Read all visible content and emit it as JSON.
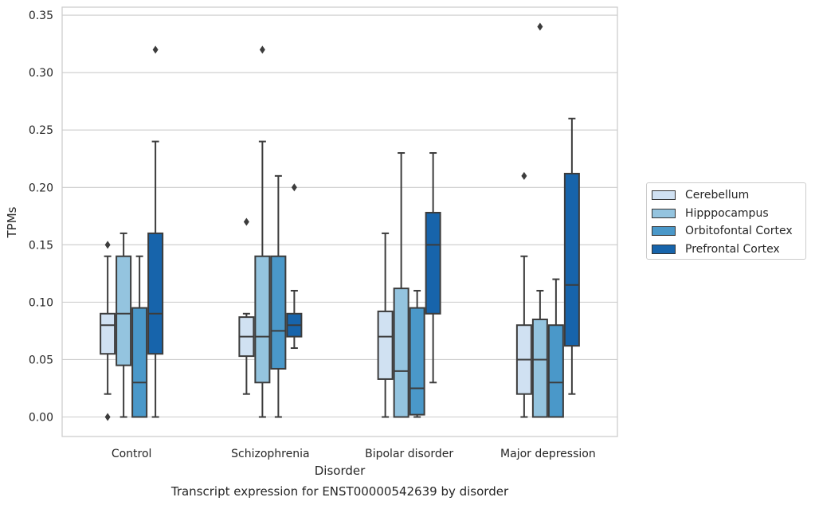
{
  "chart_data": {
    "type": "box",
    "title": "Transcript expression for ENST00000542639 by disorder",
    "xlabel": "Disorder",
    "ylabel": "TPMs",
    "ylim": [
      -0.017,
      0.357
    ],
    "yticks": [
      "0.00",
      "0.05",
      "0.10",
      "0.15",
      "0.20",
      "0.25",
      "0.30",
      "0.35"
    ],
    "grid": "horizontal",
    "legend_position": "right",
    "categories": [
      "Control",
      "Schizophrenia",
      "Bipolar disorder",
      "Major depression"
    ],
    "series": [
      {
        "name": "Cerebellum",
        "color": "#d0e1f2",
        "boxes": [
          {
            "whislo": 0.02,
            "q1": 0.055,
            "med": 0.08,
            "q3": 0.09,
            "whishi": 0.14,
            "fliers": [
              0.15,
              0.0
            ]
          },
          {
            "whislo": 0.02,
            "q1": 0.053,
            "med": 0.07,
            "q3": 0.087,
            "whishi": 0.09,
            "fliers": [
              0.17
            ]
          },
          {
            "whislo": 0.0,
            "q1": 0.033,
            "med": 0.07,
            "q3": 0.092,
            "whishi": 0.16,
            "fliers": []
          },
          {
            "whislo": 0.0,
            "q1": 0.02,
            "med": 0.05,
            "q3": 0.08,
            "whishi": 0.14,
            "fliers": [
              0.21
            ]
          }
        ]
      },
      {
        "name": "Hipppocampus",
        "color": "#94c4df",
        "boxes": [
          {
            "whislo": 0.0,
            "q1": 0.045,
            "med": 0.09,
            "q3": 0.14,
            "whishi": 0.16,
            "fliers": []
          },
          {
            "whislo": 0.0,
            "q1": 0.03,
            "med": 0.07,
            "q3": 0.14,
            "whishi": 0.24,
            "fliers": [
              0.32
            ]
          },
          {
            "whislo": 0.0,
            "q1": 0.0,
            "med": 0.04,
            "q3": 0.112,
            "whishi": 0.23,
            "fliers": []
          },
          {
            "whislo": 0.0,
            "q1": 0.0,
            "med": 0.05,
            "q3": 0.085,
            "whishi": 0.11,
            "fliers": [
              0.34
            ]
          }
        ]
      },
      {
        "name": "Orbitofontal Cortex",
        "color": "#4a98c9",
        "boxes": [
          {
            "whislo": 0.0,
            "q1": 0.0,
            "med": 0.03,
            "q3": 0.095,
            "whishi": 0.14,
            "fliers": []
          },
          {
            "whislo": 0.0,
            "q1": 0.042,
            "med": 0.075,
            "q3": 0.14,
            "whishi": 0.21,
            "fliers": []
          },
          {
            "whislo": 0.0,
            "q1": 0.002,
            "med": 0.025,
            "q3": 0.095,
            "whishi": 0.11,
            "fliers": []
          },
          {
            "whislo": 0.0,
            "q1": 0.0,
            "med": 0.03,
            "q3": 0.08,
            "whishi": 0.12,
            "fliers": []
          }
        ]
      },
      {
        "name": "Prefrontal Cortex",
        "color": "#1764ab",
        "boxes": [
          {
            "whislo": 0.0,
            "q1": 0.055,
            "med": 0.09,
            "q3": 0.16,
            "whishi": 0.24,
            "fliers": [
              0.32
            ]
          },
          {
            "whislo": 0.06,
            "q1": 0.07,
            "med": 0.08,
            "q3": 0.09,
            "whishi": 0.11,
            "fliers": [
              0.2
            ]
          },
          {
            "whislo": 0.03,
            "q1": 0.09,
            "med": 0.15,
            "q3": 0.178,
            "whishi": 0.23,
            "fliers": []
          },
          {
            "whislo": 0.02,
            "q1": 0.062,
            "med": 0.115,
            "q3": 0.212,
            "whishi": 0.26,
            "fliers": []
          }
        ]
      }
    ]
  }
}
